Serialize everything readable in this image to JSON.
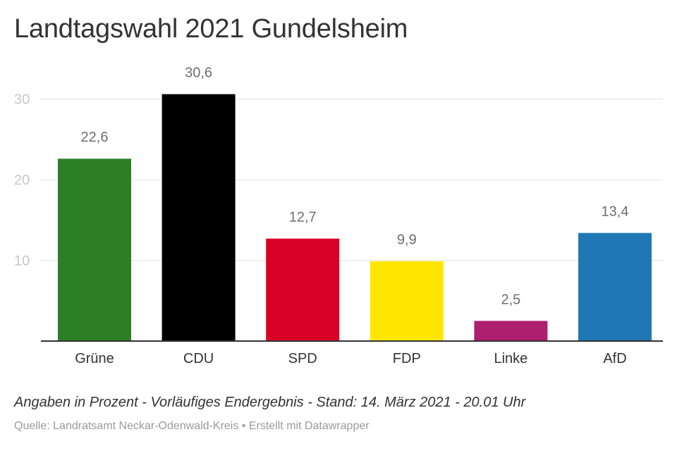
{
  "chart_data": {
    "type": "bar",
    "title": "Landtagswahl 2021 Gundelsheim",
    "categories": [
      "Grüne",
      "CDU",
      "SPD",
      "FDP",
      "Linke",
      "AfD"
    ],
    "values": [
      22.6,
      30.6,
      12.7,
      9.9,
      2.5,
      13.4
    ],
    "value_labels": [
      "22,6",
      "30,6",
      "12,7",
      "9,9",
      "2,5",
      "13,4"
    ],
    "colors": [
      "#2d7f26",
      "#000000",
      "#d90025",
      "#ffe600",
      "#ad1f6f",
      "#1f77b4"
    ],
    "yticks": [
      10,
      20,
      30
    ],
    "ylim": [
      0,
      30.6
    ],
    "grid": true,
    "legend": "none"
  },
  "footer": {
    "notes": "Angaben in Prozent - Vorläufiges Endergebnis - Stand: 14. März 2021 - 20.01 Uhr",
    "source": "Quelle: Landratsamt Neckar-Odenwald-Kreis • Erstellt mit Datawrapper"
  }
}
